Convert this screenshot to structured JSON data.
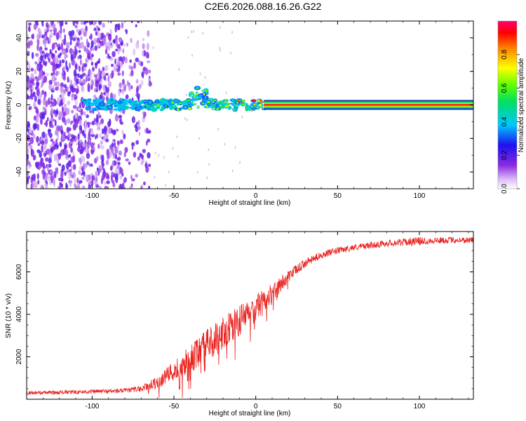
{
  "chart_data": [
    {
      "type": "heatmap",
      "title": "C2E6.2026.088.16.26.G22",
      "xlabel": "Height of straight line (km)",
      "ylabel": "Frequency (Hz)",
      "xlim": [
        -140,
        133
      ],
      "ylim": [
        -50,
        50
      ],
      "x_ticks": [
        -100,
        -50,
        0,
        50,
        100
      ],
      "x_tick_labels": [
        "-100",
        "-50",
        "0",
        "50",
        "100"
      ],
      "y_ticks": [
        -40,
        -20,
        0,
        20,
        40
      ],
      "y_tick_labels": [
        "-40",
        "-20",
        "0",
        "20",
        "40"
      ],
      "colorbar": {
        "label": "Normalized spectral amplitude",
        "range": [
          0,
          1
        ],
        "ticks": [
          0.0,
          0.2,
          0.4,
          0.6,
          0.8
        ],
        "tick_labels": [
          "0.0",
          "0.2",
          "0.4",
          "0.6",
          "0.8"
        ],
        "colormap": "rainbow (white → purple → blue → cyan → green → yellow → red → magenta)"
      },
      "features": [
        {
          "name": "scattered noise",
          "x_range": [
            -140,
            -72
          ],
          "y_range": [
            -50,
            50
          ],
          "amplitude": 0.15
        },
        {
          "name": "signal onset band",
          "x_range": [
            -105,
            5
          ],
          "y_center": 0,
          "amplitude_range": [
            0.3,
            0.9
          ]
        },
        {
          "name": "steady carrier line",
          "x_range": [
            5,
            133
          ],
          "y_center": 0,
          "amplitude": 0.95
        }
      ]
    },
    {
      "type": "line",
      "xlabel": "Height of straight line (km)",
      "ylabel": "SNR (10 * v/v)",
      "xlim": [
        -140,
        133
      ],
      "ylim": [
        0,
        7900
      ],
      "x_ticks": [
        -100,
        -50,
        0,
        50,
        100
      ],
      "x_tick_labels": [
        "-100",
        "-50",
        "0",
        "50",
        "100"
      ],
      "y_ticks": [
        2000,
        4000,
        6000
      ],
      "y_tick_labels": [
        "2000",
        "4000",
        "6000"
      ],
      "series": [
        {
          "name": "SNR",
          "color": "#e8221e",
          "x": [
            -140,
            -120,
            -100,
            -80,
            -70,
            -60,
            -50,
            -40,
            -30,
            -20,
            -10,
            0,
            10,
            20,
            30,
            40,
            50,
            60,
            70,
            80,
            90,
            100,
            110,
            120,
            133
          ],
          "y": [
            300,
            320,
            360,
            400,
            500,
            800,
            1300,
            1900,
            2500,
            3100,
            3700,
            4300,
            5000,
            5800,
            6400,
            6800,
            7000,
            7150,
            7250,
            7350,
            7400,
            7450,
            7480,
            7500,
            7500
          ],
          "noise_amplitude": [
            80,
            90,
            100,
            110,
            150,
            300,
            500,
            650,
            800,
            800,
            750,
            650,
            450,
            300,
            200,
            170,
            150,
            150,
            150,
            160,
            180,
            200,
            160,
            150,
            150
          ]
        }
      ]
    }
  ]
}
